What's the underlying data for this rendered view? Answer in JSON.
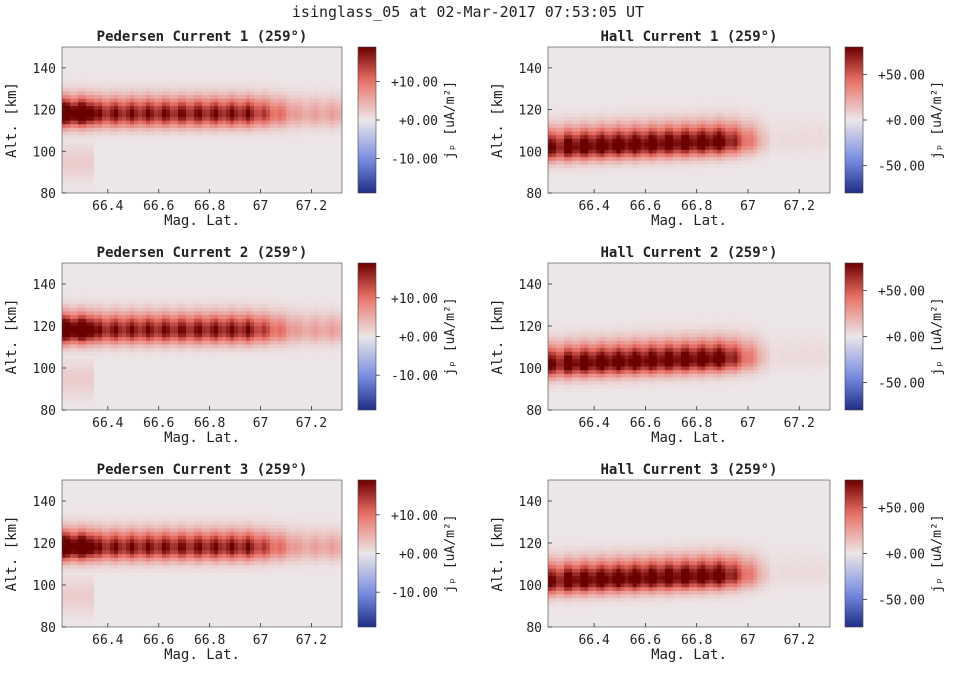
{
  "figure": {
    "title": "isinglass_05 at 02-Mar-2017 07:53:05 UT"
  },
  "colors": {
    "low": "#1f2d86",
    "mid": "#ece6e8",
    "high": "#6b0000"
  },
  "chart_data": [
    {
      "type": "heatmap",
      "title": "Pedersen Current 1 (259°)",
      "xlabel": "Mag. Lat.",
      "ylabel": "Alt. [km]",
      "xlim": [
        66.22,
        67.32
      ],
      "ylim": [
        80,
        150
      ],
      "xticks": [
        66.4,
        66.6,
        66.8,
        67,
        67.2
      ],
      "xtick_labels": [
        "66.4",
        "66.6",
        "66.8",
        "67",
        "67.2"
      ],
      "yticks": [
        80,
        100,
        120,
        140
      ],
      "colorbar": {
        "label": "jₚ [uA/m²]",
        "range": [
          -19,
          19
        ],
        "ticks": [
          -10,
          0,
          10
        ],
        "tick_labels": [
          "-10.00",
          "+0.00",
          "+10.00"
        ]
      },
      "features": {
        "layer_center_km": 118,
        "layer_peak_uA": 19,
        "peak_lat": 66.3
      }
    },
    {
      "type": "heatmap",
      "title": "Hall Current 1 (259°)",
      "xlabel": "Mag. Lat.",
      "ylabel": "Alt. [km]",
      "xlim": [
        66.22,
        67.32
      ],
      "ylim": [
        80,
        150
      ],
      "xticks": [
        66.4,
        66.6,
        66.8,
        67,
        67.2
      ],
      "xtick_labels": [
        "66.4",
        "66.6",
        "66.8",
        "67",
        "67.2"
      ],
      "yticks": [
        80,
        100,
        120,
        140
      ],
      "colorbar": {
        "label": "jₚ [uA/m²]",
        "range": [
          -80,
          80
        ],
        "ticks": [
          -50,
          0,
          50
        ],
        "tick_labels": [
          "-50.00",
          "+0.00",
          "+50.00"
        ]
      },
      "features": {
        "layer_center_km": 102,
        "layer_peak_uA": 80,
        "peak_lat": 66.4
      }
    },
    {
      "type": "heatmap",
      "title": "Pedersen Current 2 (259°)",
      "xlabel": "Mag. Lat.",
      "ylabel": "Alt. [km]",
      "xlim": [
        66.22,
        67.32
      ],
      "ylim": [
        80,
        150
      ],
      "xticks": [
        66.4,
        66.6,
        66.8,
        67,
        67.2
      ],
      "xtick_labels": [
        "66.4",
        "66.6",
        "66.8",
        "67",
        "67.2"
      ],
      "yticks": [
        80,
        100,
        120,
        140
      ],
      "colorbar": {
        "label": "jₚ [uA/m²]",
        "range": [
          -19,
          19
        ],
        "ticks": [
          -10,
          0,
          10
        ],
        "tick_labels": [
          "-10.00",
          "+0.00",
          "+10.00"
        ]
      },
      "features": {
        "layer_center_km": 118,
        "layer_peak_uA": 19,
        "peak_lat": 66.3
      }
    },
    {
      "type": "heatmap",
      "title": "Hall Current 2 (259°)",
      "xlabel": "Mag. Lat.",
      "ylabel": "Alt. [km]",
      "xlim": [
        66.22,
        67.32
      ],
      "ylim": [
        80,
        150
      ],
      "xticks": [
        66.4,
        66.6,
        66.8,
        67,
        67.2
      ],
      "xtick_labels": [
        "66.4",
        "66.6",
        "66.8",
        "67",
        "67.2"
      ],
      "yticks": [
        80,
        100,
        120,
        140
      ],
      "colorbar": {
        "label": "jₚ [uA/m²]",
        "range": [
          -80,
          80
        ],
        "ticks": [
          -50,
          0,
          50
        ],
        "tick_labels": [
          "-50.00",
          "+0.00",
          "+50.00"
        ]
      },
      "features": {
        "layer_center_km": 102,
        "layer_peak_uA": 80,
        "peak_lat": 66.4
      }
    },
    {
      "type": "heatmap",
      "title": "Pedersen Current 3 (259°)",
      "xlabel": "Mag. Lat.",
      "ylabel": "Alt. [km]",
      "xlim": [
        66.22,
        67.32
      ],
      "ylim": [
        80,
        150
      ],
      "xticks": [
        66.4,
        66.6,
        66.8,
        67,
        67.2
      ],
      "xtick_labels": [
        "66.4",
        "66.6",
        "66.8",
        "67",
        "67.2"
      ],
      "yticks": [
        80,
        100,
        120,
        140
      ],
      "colorbar": {
        "label": "jₚ [uA/m²]",
        "range": [
          -19,
          19
        ],
        "ticks": [
          -10,
          0,
          10
        ],
        "tick_labels": [
          "-10.00",
          "+0.00",
          "+10.00"
        ]
      },
      "features": {
        "layer_center_km": 118,
        "layer_peak_uA": 19,
        "peak_lat": 66.3
      }
    },
    {
      "type": "heatmap",
      "title": "Hall Current 3 (259°)",
      "xlabel": "Mag. Lat.",
      "ylabel": "Alt. [km]",
      "xlim": [
        66.22,
        67.32
      ],
      "ylim": [
        80,
        150
      ],
      "xticks": [
        66.4,
        66.6,
        66.8,
        67,
        67.2
      ],
      "xtick_labels": [
        "66.4",
        "66.6",
        "66.8",
        "67",
        "67.2"
      ],
      "yticks": [
        80,
        100,
        120,
        140
      ],
      "colorbar": {
        "label": "jₚ [uA/m²]",
        "range": [
          -80,
          80
        ],
        "ticks": [
          -50,
          0,
          50
        ],
        "tick_labels": [
          "-50.00",
          "+0.00",
          "+50.00"
        ]
      },
      "features": {
        "layer_center_km": 102,
        "layer_peak_uA": 80,
        "peak_lat": 66.4
      }
    }
  ]
}
